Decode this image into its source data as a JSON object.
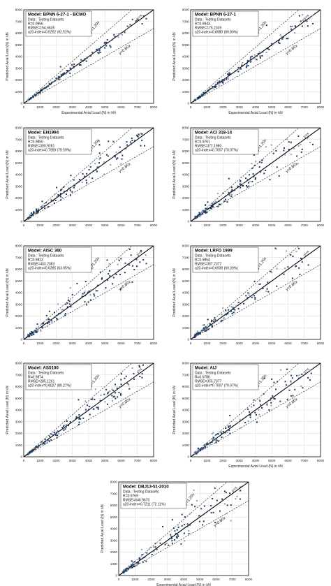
{
  "chart_data": [
    {
      "type": "scatter",
      "info": {
        "model": "Model: BPNN 6-27-1 - BCMO",
        "data": "Data : Testing Datasets",
        "r": "R=0.9956",
        "rmse": "RMSE=154.6635",
        "a20": "a20-index=0.9252 (92.52%)"
      },
      "xlabel": "Experimental Axial Load (N) in kN",
      "ylabel": "Predicted Axial Load (N) in kN",
      "xlim": [
        0,
        8000
      ],
      "ylim": [
        0,
        8000
      ],
      "xticks": [
        "0",
        "1000",
        "2000",
        "3000",
        "4000",
        "5000",
        "6000",
        "7000",
        "8000"
      ],
      "yticks": [
        "0",
        "1000",
        "2000",
        "3000",
        "4000",
        "5000",
        "6000",
        "7000",
        "8000"
      ],
      "ref_labels": {
        "upper": "y=1.20x",
        "middle": "y=x",
        "lower": "y=0.80x"
      },
      "grid": true,
      "spread": 0.05,
      "outliers": 0.02,
      "seed": 11
    },
    {
      "type": "scatter",
      "info": {
        "model": "Model: BPNN 6-27-1",
        "data": "Data : Testing Datasets",
        "r": "R=0.9943",
        "rmse": "RMSE=176.2339",
        "a20": "a20-index=0.8980 (89.80%)"
      },
      "xlabel": "Experimental Axial Load (N) in kN",
      "ylabel": "Predicted Axial Load (N) in kN",
      "xlim": [
        0,
        8000
      ],
      "ylim": [
        0,
        8000
      ],
      "xticks": [
        "0",
        "1000",
        "2000",
        "3000",
        "4000",
        "5000",
        "6000",
        "7000",
        "8000"
      ],
      "yticks": [
        "0",
        "1000",
        "2000",
        "3000",
        "4000",
        "5000",
        "6000",
        "7000",
        "8000"
      ],
      "ref_labels": {
        "upper": "y=1.20x",
        "middle": "y=x",
        "lower": "y=0.80x"
      },
      "grid": true,
      "spread": 0.07,
      "outliers": 0.03,
      "seed": 23
    },
    {
      "type": "scatter",
      "info": {
        "model": "Model: EN1994",
        "data": "Data : Testing Datasets",
        "r": "R=0.9850",
        "rmse": "RMSE=309.9281",
        "a20": "a20-index=0.7959 (79.59%)"
      },
      "xlabel": "",
      "ylabel": "Predicted Axial Load (N) in kN",
      "xlim": [
        0,
        8000
      ],
      "ylim": [
        0,
        8000
      ],
      "xticks": [
        "0",
        "1000",
        "2000",
        "3000",
        "4000",
        "5000",
        "6000",
        "7000",
        "8000"
      ],
      "yticks": [
        "0",
        "1000",
        "2000",
        "3000",
        "4000",
        "5000",
        "6000",
        "7000",
        "8000"
      ],
      "ref_labels": {
        "upper": "y=1.20x",
        "middle": "y=x",
        "lower": "y=0.80x"
      },
      "grid": false,
      "spread": 0.13,
      "outliers": 0.06,
      "seed": 37
    },
    {
      "type": "scatter",
      "info": {
        "model": "Model: ACI 318-14",
        "data": "Data : Testing Datasets",
        "r": "R=0.9761",
        "rmse": "RMSE=372.1980",
        "a20": "a20-index=0.7007 (70.07%)"
      },
      "xlabel": "",
      "ylabel": "Predicted Axial Load (N) in kN",
      "xlim": [
        0,
        8000
      ],
      "ylim": [
        0,
        8000
      ],
      "xticks": [
        "0",
        "1000",
        "2000",
        "3000",
        "4000",
        "5000",
        "6000",
        "7000",
        "8000"
      ],
      "yticks": [
        "0",
        "1000",
        "2000",
        "3000",
        "4000",
        "5000",
        "6000",
        "7000",
        "8000"
      ],
      "ref_labels": {
        "upper": "y=1.20x",
        "middle": "y=x",
        "lower": "y=0.80x"
      },
      "grid": true,
      "spread": 0.16,
      "outliers": 0.08,
      "seed": 41
    },
    {
      "type": "scatter",
      "info": {
        "model": "Model: AISC 360",
        "data": "Data : Testing Datasets",
        "r": "R=0.9823",
        "rmse": "RMSE=403.2383",
        "a20": "a20-index=0.6395 (63.95%)"
      },
      "xlabel": "",
      "ylabel": "Predicted Axial Load (N) in kN",
      "xlim": [
        0,
        8000
      ],
      "ylim": [
        0,
        8000
      ],
      "xticks": [
        "0",
        "1000",
        "2000",
        "3000",
        "4000",
        "5000",
        "6000",
        "7000",
        "8000"
      ],
      "yticks": [
        "0",
        "1000",
        "2000",
        "3000",
        "4000",
        "5000",
        "6000",
        "7000",
        "8000"
      ],
      "ref_labels": {
        "upper": "y=1.20x",
        "middle": "y=x",
        "lower": "y=0.80x"
      },
      "grid": true,
      "spread": 0.17,
      "outliers": 0.08,
      "seed": 53
    },
    {
      "type": "scatter",
      "info": {
        "model": "Model: LRFD 1999",
        "data": "Data : Testing Datasets",
        "r": "R=0.9854",
        "rmse": "RMSE=357.7377",
        "a20": "a20-index=0.6939 (69.39%)"
      },
      "xlabel": "",
      "ylabel": "Predicted Axial Load (N) in kN",
      "xlim": [
        0,
        8000
      ],
      "ylim": [
        0,
        8000
      ],
      "xticks": [
        "0",
        "1000",
        "2000",
        "3000",
        "4000",
        "5000",
        "6000",
        "7000",
        "8000"
      ],
      "yticks": [
        "0",
        "1000",
        "2000",
        "3000",
        "4000",
        "5000",
        "6000",
        "7000",
        "8000"
      ],
      "ref_labels": {
        "upper": "y=1.20x",
        "middle": "y=x",
        "lower": "y=0.80x"
      },
      "grid": true,
      "spread": 0.15,
      "outliers": 0.07,
      "seed": 67
    },
    {
      "type": "scatter",
      "info": {
        "model": "Model: AS5100",
        "data": "Data : Testing Datasets",
        "r": "R=0.9874",
        "rmse": "RMSE=285.1261",
        "a20": "a20-index=0.8027 (80.27%)"
      },
      "xlabel": "",
      "ylabel": "Predicted Axial Load (N) in kN",
      "xlim": [
        0,
        8000
      ],
      "ylim": [
        0,
        8000
      ],
      "xticks": [
        "0",
        "1000",
        "2000",
        "3000",
        "4000",
        "5000",
        "6000",
        "7000",
        "8000"
      ],
      "yticks": [
        "0",
        "1000",
        "2000",
        "3000",
        "4000",
        "5000",
        "6000",
        "7000",
        "8000"
      ],
      "ref_labels": {
        "upper": "y=1.20x",
        "middle": "y=x",
        "lower": "y=0.80x"
      },
      "grid": true,
      "spread": 0.12,
      "outliers": 0.05,
      "seed": 71
    },
    {
      "type": "scatter",
      "info": {
        "model": "Model: AIJ",
        "data": "Data : Testing Datasets",
        "r": "R=0.9786",
        "rmse": "RMSE=355.7377",
        "a20": "a20-index=0.7007 (70.07%)"
      },
      "xlabel": "Experimental Axial Load (N) in kN",
      "ylabel": "Predicted Axial Load (N) in kN",
      "xlim": [
        0,
        8000
      ],
      "ylim": [
        0,
        8000
      ],
      "xticks": [
        "0",
        "1000",
        "2000",
        "3000",
        "4000",
        "5000",
        "6000",
        "7000",
        "8000"
      ],
      "yticks": [
        "0",
        "1000",
        "2000",
        "3000",
        "4000",
        "5000",
        "6000",
        "7000",
        "8000"
      ],
      "ref_labels": {
        "upper": "y=1.20x",
        "middle": "y=x",
        "lower": "y=0.80x"
      },
      "grid": true,
      "spread": 0.15,
      "outliers": 0.08,
      "seed": 83
    },
    {
      "type": "scatter",
      "info": {
        "model": "Model: DBJ13-51-2010",
        "data": "Data : Testing Datasets",
        "r": "R=0.9769",
        "rmse": "RMSE=646.9670",
        "a20": "a20-index=0.7211 (72.11%)"
      },
      "xlabel": "Experimental Axial Load (N) in kN",
      "ylabel": "Predicted Axial Load (N) in kN",
      "xlim": [
        0,
        8000
      ],
      "ylim": [
        0,
        8000
      ],
      "xticks": [
        "0",
        "1000",
        "2000",
        "3000",
        "4000",
        "5000",
        "6000",
        "7000",
        "8000"
      ],
      "yticks": [
        "0",
        "1000",
        "2000",
        "3000",
        "4000",
        "5000",
        "6000",
        "7000",
        "8000"
      ],
      "ref_labels": {
        "upper": "y=1.20x",
        "middle": "y=x",
        "lower": "y=0.80x"
      },
      "grid": true,
      "spread": 0.16,
      "outliers": 0.09,
      "seed": 97
    }
  ]
}
